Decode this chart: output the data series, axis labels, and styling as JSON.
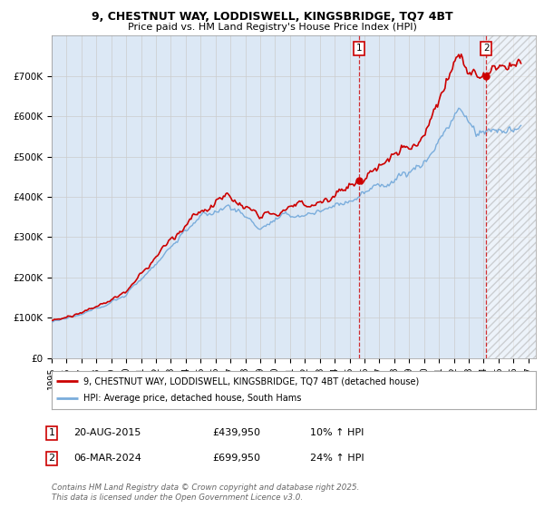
{
  "title_line1": "9, CHESTNUT WAY, LODDISWELL, KINGSBRIDGE, TQ7 4BT",
  "title_line2": "Price paid vs. HM Land Registry's House Price Index (HPI)",
  "legend_label_red": "9, CHESTNUT WAY, LODDISWELL, KINGSBRIDGE, TQ7 4BT (detached house)",
  "legend_label_blue": "HPI: Average price, detached house, South Hams",
  "annotation1_label": "1",
  "annotation1_date": "20-AUG-2015",
  "annotation1_price": "£439,950",
  "annotation1_hpi": "10% ↑ HPI",
  "annotation2_label": "2",
  "annotation2_date": "06-MAR-2024",
  "annotation2_price": "£699,950",
  "annotation2_hpi": "24% ↑ HPI",
  "footer": "Contains HM Land Registry data © Crown copyright and database right 2025.\nThis data is licensed under the Open Government Licence v3.0.",
  "red_color": "#cc0000",
  "blue_color": "#7aaddc",
  "grid_color": "#cccccc",
  "background_color": "#ffffff",
  "plot_bg_color": "#dce8f5",
  "ylim": [
    0,
    800000
  ],
  "yticks": [
    0,
    100000,
    200000,
    300000,
    400000,
    500000,
    600000,
    700000
  ],
  "ytick_labels": [
    "£0",
    "£100K",
    "£200K",
    "£300K",
    "£400K",
    "£500K",
    "£600K",
    "£700K"
  ],
  "xlim_start": 1995.0,
  "xlim_end": 2027.5,
  "marker1_x": 2015.64,
  "marker1_y": 439950,
  "marker2_x": 2024.17,
  "marker2_y": 699950,
  "vline1_x": 2015.64,
  "vline2_x": 2024.17
}
